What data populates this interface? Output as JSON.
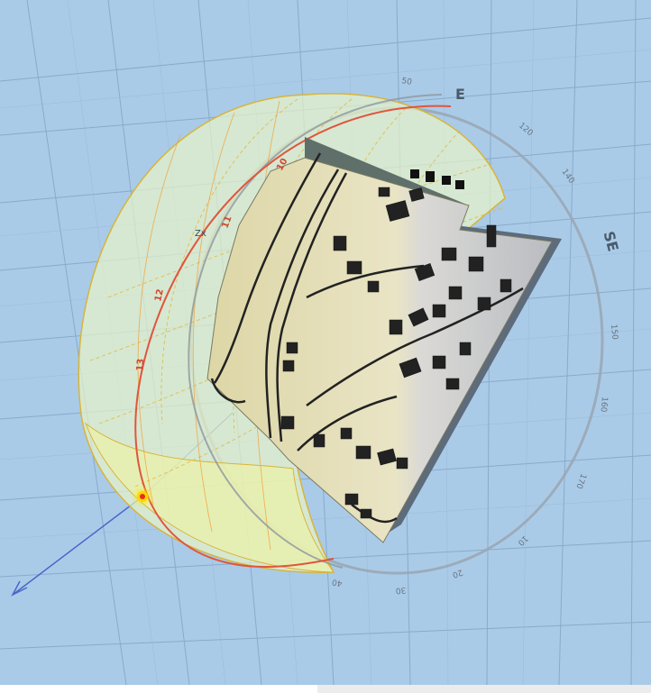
{
  "compass": {
    "east_label": "E",
    "southeast_label": "SE"
  },
  "ring_ticks": [
    "120",
    "140",
    "150",
    "160",
    "170",
    "10",
    "20",
    "30",
    "40",
    "50"
  ],
  "hour_labels": [
    "10",
    "11",
    "12",
    "13"
  ],
  "sphere_label": "Zx",
  "colors": {
    "background": "#a9cbe8",
    "grid": "#7f9fbf",
    "dome_fill": "#e9f3c8",
    "dome_lines": "#e2b93f",
    "sun_path": "#e0553e",
    "sun_marker": "#e33020",
    "terrain_light": "#e6e2bf",
    "terrain_shadow": "#5d6b7a",
    "ring": "#9aa6b2",
    "ray": "#4a67c8"
  },
  "icons": {
    "sun": "sun-position-icon",
    "arrow": "sun-ray-arrow-icon"
  }
}
